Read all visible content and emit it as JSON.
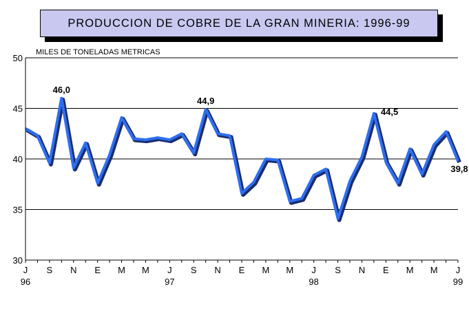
{
  "chart_data": {
    "type": "line",
    "title": "PRODUCCION DE COBRE DE LA GRAN MINERIA: 1996-99",
    "ylabel": "MILES DE TONELADAS METRICAS",
    "ylim": [
      30,
      50
    ],
    "yticks": [
      30,
      35,
      40,
      45,
      50
    ],
    "x_tick_labels": [
      "J",
      "S",
      "N",
      "E",
      "M",
      "M",
      "J",
      "S",
      "N",
      "E",
      "M",
      "M",
      "J",
      "S",
      "N",
      "E",
      "M",
      "M",
      "J"
    ],
    "year_labels": [
      {
        "index": 0,
        "label": "96"
      },
      {
        "index": 12,
        "label": "97"
      },
      {
        "index": 24,
        "label": "98"
      },
      {
        "index": 36,
        "label": "99"
      }
    ],
    "series": [
      {
        "values": [
          43.0,
          42.3,
          39.6,
          46.0,
          39.1,
          41.6,
          37.6,
          40.4,
          44.1,
          42.0,
          41.9,
          42.1,
          41.9,
          42.5,
          40.6,
          44.9,
          42.5,
          42.3,
          36.6,
          37.7,
          40.0,
          39.9,
          35.8,
          36.1,
          38.4,
          39.0,
          34.1,
          37.8,
          40.2,
          44.5,
          39.7,
          37.6,
          41.0,
          38.5,
          41.4,
          42.7,
          39.8
        ],
        "color": "#2f6fef",
        "shadow_color": "#1a2c6e"
      }
    ],
    "data_labels": [
      {
        "index": 3,
        "label": "46,0"
      },
      {
        "index": 15,
        "label": "44,9"
      },
      {
        "index": 29,
        "label": "44,5"
      },
      {
        "index": 36,
        "label": "39,8"
      }
    ],
    "grid": true,
    "legend": "none"
  }
}
